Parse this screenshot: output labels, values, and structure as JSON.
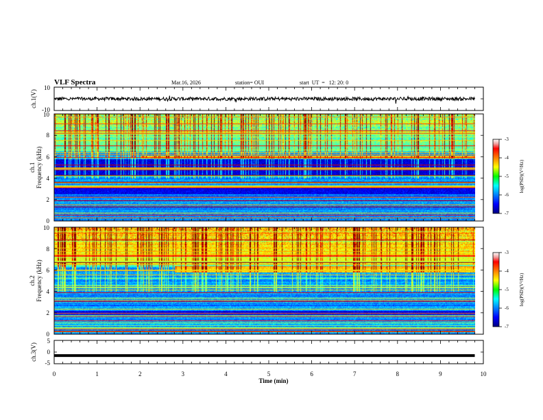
{
  "header": {
    "title": "VLF Spectra",
    "date": "Mar.16, 2026",
    "station": "station= OUI",
    "start": "start  UT  =   12: 20: 0"
  },
  "chart_data": [
    {
      "type": "line",
      "name": "ch1-waveform",
      "ylabel": "ch.1(V)",
      "ylim": [
        -10,
        10
      ],
      "yticks": [
        "10",
        "-10"
      ],
      "xlim": [
        0,
        10
      ],
      "baseline": 0,
      "amplitude": 1.5
    },
    {
      "type": "heatmap",
      "name": "ch1-spectrogram",
      "ylabel_line1": "ch.1",
      "ylabel_line2": "Frequency  (kHz)",
      "ylim": [
        0,
        10
      ],
      "yticks": [
        "0",
        "2",
        "4",
        "6",
        "8",
        "10"
      ],
      "xlim": [
        0,
        10
      ],
      "data_end_min": 9.8,
      "colorbar": {
        "label": "log(PSD)(V²/Hz)",
        "range": [
          -7,
          -3
        ],
        "ticks": [
          "-3",
          "-4",
          "-5",
          "-6",
          "-7"
        ]
      }
    },
    {
      "type": "heatmap",
      "name": "ch2-spectrogram",
      "ylabel_line1": "ch.2",
      "ylabel_line2": "Frequency  (kHz)",
      "ylim": [
        0,
        10
      ],
      "yticks": [
        "0",
        "2",
        "4",
        "6",
        "8",
        "10"
      ],
      "xlim": [
        0,
        10
      ],
      "data_end_min": 9.8,
      "colorbar": {
        "label": "log(PSD)(V²/Hz)",
        "range": [
          -7,
          -3
        ],
        "ticks": [
          "-3",
          "-4",
          "-5",
          "-6",
          "-7"
        ]
      }
    },
    {
      "type": "line",
      "name": "ch3-waveform",
      "ylabel": "ch.3(V)",
      "ylim": [
        -5,
        5
      ],
      "yticks": [
        "5",
        "0",
        "-5"
      ],
      "xlim": [
        0,
        10
      ],
      "baseline": -1.5,
      "amplitude": 0.1
    }
  ],
  "xaxis": {
    "label": "Time  (min)",
    "ticks": [
      "0",
      "1",
      "2",
      "3",
      "4",
      "5",
      "6",
      "7",
      "8",
      "9",
      "10"
    ]
  }
}
